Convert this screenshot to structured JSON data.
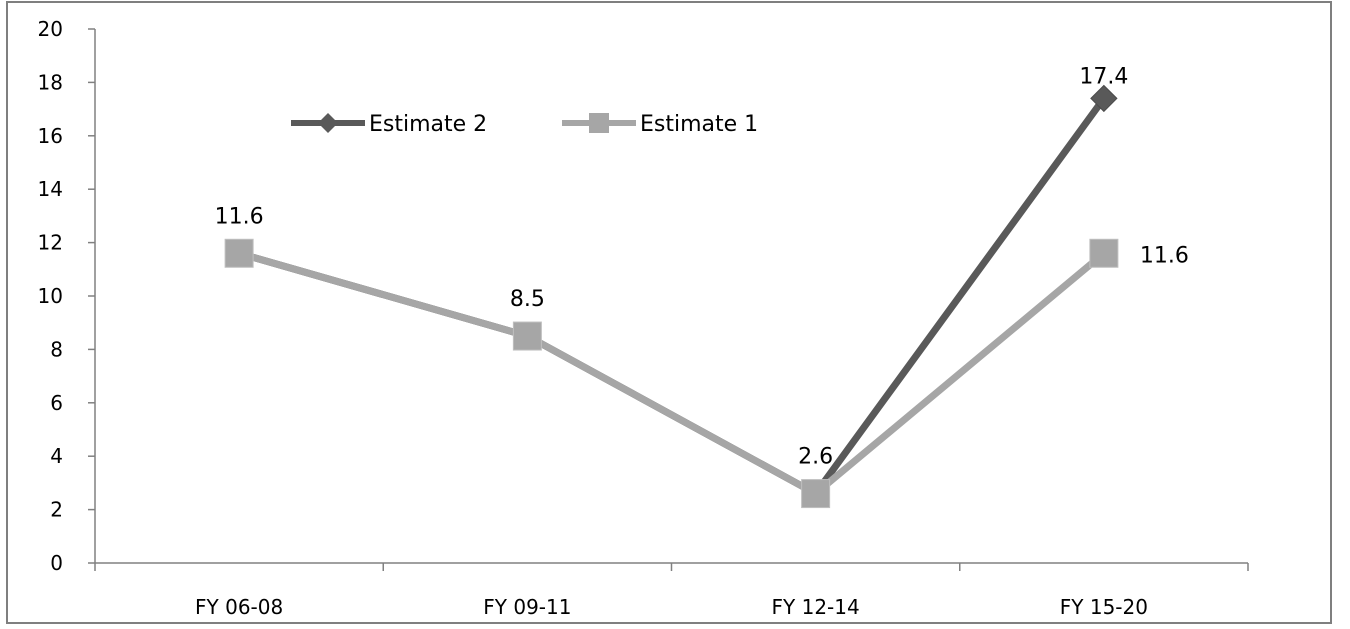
{
  "chart_data": {
    "type": "line",
    "categories": [
      "FY 06-08",
      "FY 09-11",
      "FY 12-14",
      "FY 15-20"
    ],
    "series": [
      {
        "name": "Estimate 2",
        "values": [
          11.6,
          8.5,
          2.6,
          17.4
        ],
        "color": "#595959",
        "marker": "diamond"
      },
      {
        "name": "Estimate 1",
        "values": [
          11.6,
          8.5,
          2.6,
          11.6
        ],
        "color": "#a6a6a6",
        "marker": "square"
      }
    ],
    "data_labels": [
      {
        "series": 1,
        "index": 0,
        "text": "11.6"
      },
      {
        "series": 1,
        "index": 1,
        "text": "8.5"
      },
      {
        "series": 1,
        "index": 2,
        "text": "2.6"
      },
      {
        "series": 0,
        "index": 3,
        "text": "17.4"
      },
      {
        "series": 1,
        "index": 3,
        "text": "11.6"
      }
    ],
    "ylim": [
      0,
      20
    ],
    "yticks": [
      "0",
      "2",
      "4",
      "6",
      "8",
      "10",
      "12",
      "14",
      "16",
      "18",
      "20"
    ],
    "grid": false,
    "legend_position": "top-left"
  }
}
